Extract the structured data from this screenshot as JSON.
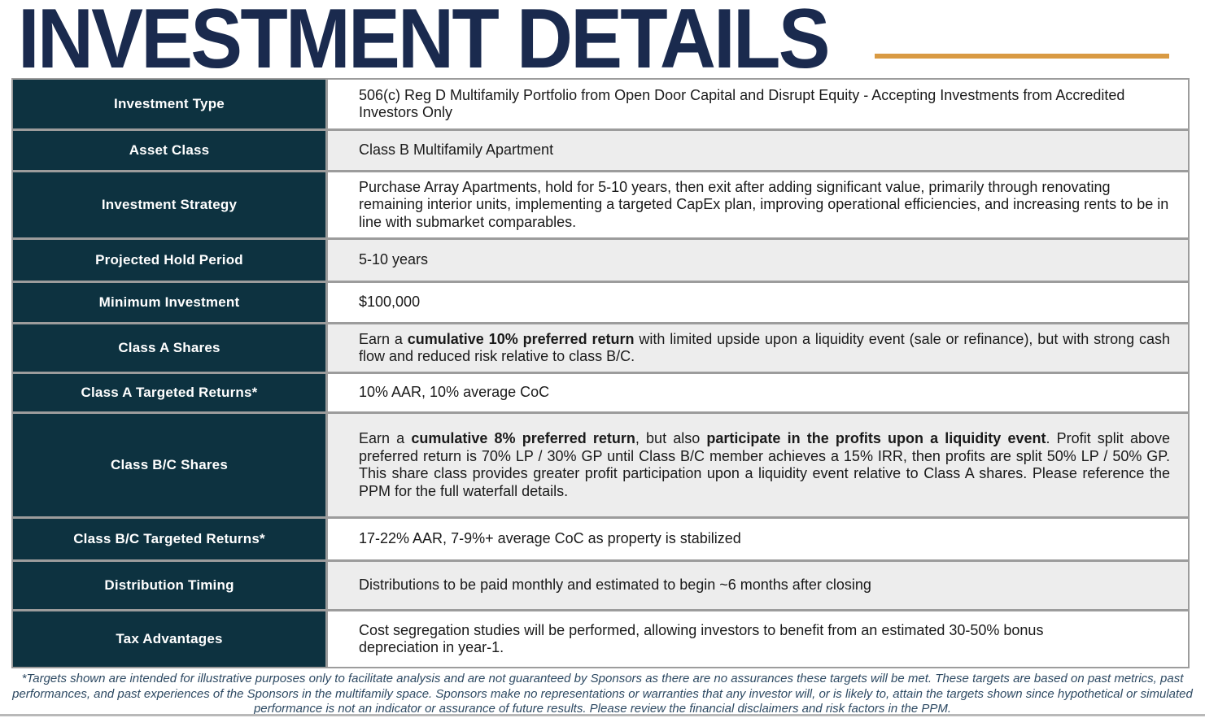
{
  "header": {
    "title": "INVESTMENT DETAILS"
  },
  "table": {
    "rows": [
      {
        "label": "Investment Type",
        "segments": [
          {
            "text": "506(c) Reg D Multifamily Portfolio from Open Door Capital and Disrupt Equity - Accepting Investments from Accredited Investors Only",
            "bold": false
          }
        ]
      },
      {
        "label": "Asset Class",
        "segments": [
          {
            "text": "Class B Multifamily Apartment",
            "bold": false
          }
        ]
      },
      {
        "label": "Investment Strategy",
        "segments": [
          {
            "text": "Purchase Array Apartments, hold for 5-10 years, then exit after adding significant value, primarily through renovating remaining interior units, implementing a targeted CapEx plan, improving operational efficiencies, and increasing rents to be in line with submarket comparables.",
            "bold": false
          }
        ]
      },
      {
        "label": "Projected Hold Period",
        "segments": [
          {
            "text": "5-10 years",
            "bold": false
          }
        ]
      },
      {
        "label": "Minimum Investment",
        "segments": [
          {
            "text": "$100,000",
            "bold": false
          }
        ]
      },
      {
        "label": "Class A Shares",
        "segments": [
          {
            "text": "Earn a ",
            "bold": false
          },
          {
            "text": "cumulative 10% preferred return",
            "bold": true
          },
          {
            "text": " with limited upside upon a liquidity event (sale or refinance), but with strong cash flow and reduced risk relative to class B/C.",
            "bold": false
          }
        ]
      },
      {
        "label": "Class A Targeted Returns*",
        "segments": [
          {
            "text": "10% AAR, 10% average CoC",
            "bold": false
          }
        ]
      },
      {
        "label": "Class B/C Shares",
        "segments": [
          {
            "text": "Earn a ",
            "bold": false
          },
          {
            "text": "cumulative 8% preferred return",
            "bold": true
          },
          {
            "text": ", but also ",
            "bold": false
          },
          {
            "text": "participate in the profits upon a liquidity event",
            "bold": true
          },
          {
            "text": ". Profit split above preferred return is 70% LP / 30% GP until Class B/C member achieves a 15% IRR, then profits are split 50% LP / 50% GP. This share class provides greater profit participation upon a liquidity event relative to Class A shares. Please reference the PPM for the full waterfall details.",
            "bold": false
          }
        ]
      },
      {
        "label": "Class B/C Targeted Returns*",
        "segments": [
          {
            "text": "17-22% AAR, 7-9%+ average CoC as property is stabilized",
            "bold": false
          }
        ]
      },
      {
        "label": "Distribution Timing",
        "segments": [
          {
            "text": "Distributions to be paid monthly and estimated to begin ~6 months after closing",
            "bold": false
          }
        ]
      },
      {
        "label": "Tax Advantages",
        "segments": [
          {
            "text": "Cost segregation studies will be performed, allowing investors to benefit from an estimated 30-50% bonus depreciation in year-1.",
            "bold": false
          }
        ]
      }
    ]
  },
  "footer": {
    "disclaimer": "*Targets shown are intended for illustrative purposes only to facilitate analysis and are not guaranteed by Sponsors as there are no assurances these targets will be met. These targets are based on past metrics, past performances, and past experiences of the Sponsors in the multifamily space. Sponsors make no representations or warranties that any investor will, or is likely to, attain the targets shown since hypothetical or simulated performance is not an indicator or assurance of future results. Please review the financial disclaimers and risk factors in the PPM."
  },
  "colors": {
    "accent": "#d99a43",
    "title": "#1a2a4e",
    "label_bg": "#0d3240",
    "row_alt": "#ededed",
    "border": "#9c9c9c",
    "value_text": "#1a1a1a",
    "footer_text": "#2e4a63"
  }
}
